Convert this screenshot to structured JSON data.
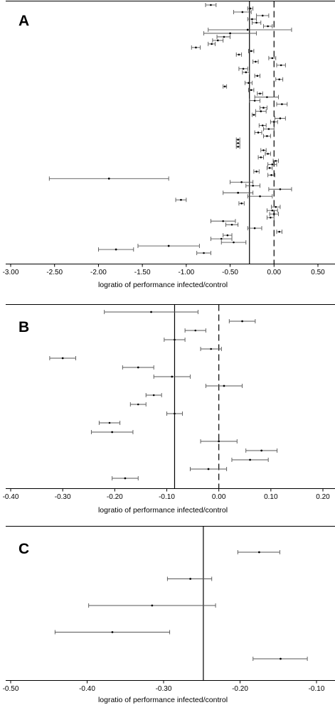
{
  "chart_data": [
    {
      "type": "forest",
      "panel_label": "A",
      "xlabel": "logratio of performance infected/control",
      "xlim": [
        -3.0,
        0.5
      ],
      "xticks": [
        "-3.00",
        "-2.50",
        "-2.00",
        "-1.50",
        "-1.00",
        "-0.50",
        "0.00",
        "0.50"
      ],
      "pooled_estimate": -0.28,
      "null_value": 0.0,
      "studies": [
        {
          "est": -0.72,
          "lo": -0.78,
          "hi": -0.66
        },
        {
          "est": -0.27,
          "lo": -0.3,
          "hi": -0.24
        },
        {
          "est": -0.36,
          "lo": -0.46,
          "hi": -0.26
        },
        {
          "est": -0.13,
          "lo": -0.2,
          "hi": -0.06
        },
        {
          "est": -0.25,
          "lo": -0.3,
          "hi": -0.2
        },
        {
          "est": -0.2,
          "lo": -0.25,
          "hi": -0.15
        },
        {
          "est": -0.07,
          "lo": -0.12,
          "hi": -0.02
        },
        {
          "est": -0.3,
          "lo": -0.75,
          "hi": 0.2
        },
        {
          "est": -0.5,
          "lo": -0.8,
          "hi": -0.2
        },
        {
          "est": -0.57,
          "lo": -0.65,
          "hi": -0.5
        },
        {
          "est": -0.64,
          "lo": -0.7,
          "hi": -0.58
        },
        {
          "est": -0.71,
          "lo": -0.75,
          "hi": -0.67
        },
        {
          "est": -0.89,
          "lo": -0.94,
          "hi": -0.84
        },
        {
          "est": -0.26,
          "lo": -0.29,
          "hi": -0.23
        },
        {
          "est": -0.4,
          "lo": -0.43,
          "hi": -0.37
        },
        {
          "est": -0.02,
          "lo": -0.06,
          "hi": 0.02
        },
        {
          "est": -0.21,
          "lo": -0.24,
          "hi": -0.18
        },
        {
          "est": 0.08,
          "lo": 0.03,
          "hi": 0.13
        },
        {
          "est": -0.35,
          "lo": -0.4,
          "hi": -0.3
        },
        {
          "est": -0.32,
          "lo": -0.36,
          "hi": -0.28
        },
        {
          "est": -0.19,
          "lo": -0.22,
          "hi": -0.16
        },
        {
          "est": 0.06,
          "lo": 0.02,
          "hi": 0.1
        },
        {
          "est": -0.29,
          "lo": -0.33,
          "hi": -0.25
        },
        {
          "est": -0.56,
          "lo": -0.58,
          "hi": -0.54
        },
        {
          "est": -0.26,
          "lo": -0.29,
          "hi": -0.23
        },
        {
          "est": -0.16,
          "lo": -0.19,
          "hi": -0.13
        },
        {
          "est": -0.08,
          "lo": -0.22,
          "hi": 0.05
        },
        {
          "est": -0.22,
          "lo": -0.28,
          "hi": -0.16
        },
        {
          "est": 0.09,
          "lo": 0.03,
          "hi": 0.15
        },
        {
          "est": -0.12,
          "lo": -0.16,
          "hi": -0.08
        },
        {
          "est": -0.15,
          "lo": -0.21,
          "hi": -0.09
        },
        {
          "est": -0.23,
          "lo": -0.25,
          "hi": -0.21
        },
        {
          "est": 0.07,
          "lo": 0.01,
          "hi": 0.13
        },
        {
          "est": 0.0,
          "lo": -0.04,
          "hi": 0.04
        },
        {
          "est": -0.13,
          "lo": -0.17,
          "hi": -0.09
        },
        {
          "est": -0.06,
          "lo": -0.12,
          "hi": 0.0
        },
        {
          "est": -0.18,
          "lo": -0.22,
          "hi": -0.14
        },
        {
          "est": -0.08,
          "lo": -0.12,
          "hi": -0.04
        },
        {
          "est": -0.41,
          "lo": -0.43,
          "hi": -0.39
        },
        {
          "est": -0.41,
          "lo": -0.43,
          "hi": -0.39
        },
        {
          "est": -0.41,
          "lo": -0.43,
          "hi": -0.39
        },
        {
          "est": -0.12,
          "lo": -0.15,
          "hi": -0.09
        },
        {
          "est": -0.07,
          "lo": -0.1,
          "hi": -0.04
        },
        {
          "est": -0.15,
          "lo": -0.18,
          "hi": -0.12
        },
        {
          "est": 0.02,
          "lo": -0.01,
          "hi": 0.05
        },
        {
          "est": -0.02,
          "lo": -0.07,
          "hi": 0.03
        },
        {
          "est": -0.05,
          "lo": -0.08,
          "hi": -0.02
        },
        {
          "est": -0.2,
          "lo": -0.23,
          "hi": -0.17
        },
        {
          "est": -0.03,
          "lo": -0.07,
          "hi": 0.01
        },
        {
          "est": -1.88,
          "lo": -2.56,
          "hi": -1.2
        },
        {
          "est": -0.37,
          "lo": -0.5,
          "hi": -0.24
        },
        {
          "est": -0.24,
          "lo": -0.32,
          "hi": -0.16
        },
        {
          "est": 0.07,
          "lo": -0.06,
          "hi": 0.2
        },
        {
          "est": -0.41,
          "lo": -0.58,
          "hi": -0.24
        },
        {
          "est": -0.16,
          "lo": -0.3,
          "hi": -0.02
        },
        {
          "est": -1.06,
          "lo": -1.12,
          "hi": -1.0
        },
        {
          "est": -0.37,
          "lo": -0.4,
          "hi": -0.34
        },
        {
          "est": 0.02,
          "lo": -0.03,
          "hi": 0.07
        },
        {
          "est": -0.02,
          "lo": -0.08,
          "hi": 0.04
        },
        {
          "est": 0.0,
          "lo": -0.05,
          "hi": 0.05
        },
        {
          "est": -0.04,
          "lo": -0.08,
          "hi": 0.0
        },
        {
          "est": -0.58,
          "lo": -0.72,
          "hi": -0.44
        },
        {
          "est": -0.48,
          "lo": -0.55,
          "hi": -0.41
        },
        {
          "est": -0.22,
          "lo": -0.3,
          "hi": -0.14
        },
        {
          "est": 0.06,
          "lo": 0.03,
          "hi": 0.09
        },
        {
          "est": -0.53,
          "lo": -0.58,
          "hi": -0.48
        },
        {
          "est": -0.6,
          "lo": -0.72,
          "hi": -0.48
        },
        {
          "est": -0.46,
          "lo": -0.6,
          "hi": -0.32
        },
        {
          "est": -1.2,
          "lo": -1.55,
          "hi": -0.85
        },
        {
          "est": -1.8,
          "lo": -2.0,
          "hi": -1.6
        },
        {
          "est": -0.8,
          "lo": -0.88,
          "hi": -0.72
        }
      ]
    },
    {
      "type": "forest",
      "panel_label": "B",
      "xlabel": "logratio of performance infected/control",
      "xlim": [
        -0.4,
        0.2
      ],
      "xticks": [
        "-0.40",
        "-0.30",
        "-0.20",
        "-0.10",
        "0.00",
        "0.10",
        "0.20"
      ],
      "pooled_estimate": -0.085,
      "null_value": 0.0,
      "studies": [
        {
          "est": -0.13,
          "lo": -0.22,
          "hi": -0.04
        },
        {
          "est": 0.045,
          "lo": 0.02,
          "hi": 0.07
        },
        {
          "est": -0.045,
          "lo": -0.065,
          "hi": -0.025
        },
        {
          "est": -0.085,
          "lo": -0.105,
          "hi": -0.065
        },
        {
          "est": -0.015,
          "lo": -0.035,
          "hi": 0.005
        },
        {
          "est": -0.3,
          "lo": -0.325,
          "hi": -0.275
        },
        {
          "est": -0.155,
          "lo": -0.185,
          "hi": -0.125
        },
        {
          "est": -0.09,
          "lo": -0.125,
          "hi": -0.055
        },
        {
          "est": 0.01,
          "lo": -0.025,
          "hi": 0.045
        },
        {
          "est": -0.125,
          "lo": -0.14,
          "hi": -0.11
        },
        {
          "est": -0.155,
          "lo": -0.17,
          "hi": -0.14
        },
        {
          "est": -0.085,
          "lo": -0.1,
          "hi": -0.07
        },
        {
          "est": -0.21,
          "lo": -0.23,
          "hi": -0.19
        },
        {
          "est": -0.205,
          "lo": -0.245,
          "hi": -0.165
        },
        {
          "est": 0.0,
          "lo": -0.035,
          "hi": 0.035
        },
        {
          "est": 0.082,
          "lo": 0.052,
          "hi": 0.112
        },
        {
          "est": 0.06,
          "lo": 0.025,
          "hi": 0.095
        },
        {
          "est": -0.02,
          "lo": -0.055,
          "hi": 0.015
        },
        {
          "est": -0.18,
          "lo": -0.205,
          "hi": -0.155
        }
      ]
    },
    {
      "type": "forest",
      "panel_label": "C",
      "xlabel": "logratio of performance infected/control",
      "xlim": [
        -0.5,
        -0.1
      ],
      "xticks": [
        "-0.50",
        "-0.40",
        "-0.30",
        "-0.20",
        "-0.10"
      ],
      "pooled_estimate": -0.248,
      "studies": [
        {
          "est": -0.175,
          "lo": -0.203,
          "hi": -0.148
        },
        {
          "est": -0.265,
          "lo": -0.295,
          "hi": -0.237
        },
        {
          "est": -0.315,
          "lo": -0.398,
          "hi": -0.232
        },
        {
          "est": -0.367,
          "lo": -0.442,
          "hi": -0.292
        },
        {
          "est": -0.147,
          "lo": -0.183,
          "hi": -0.112
        }
      ]
    }
  ]
}
